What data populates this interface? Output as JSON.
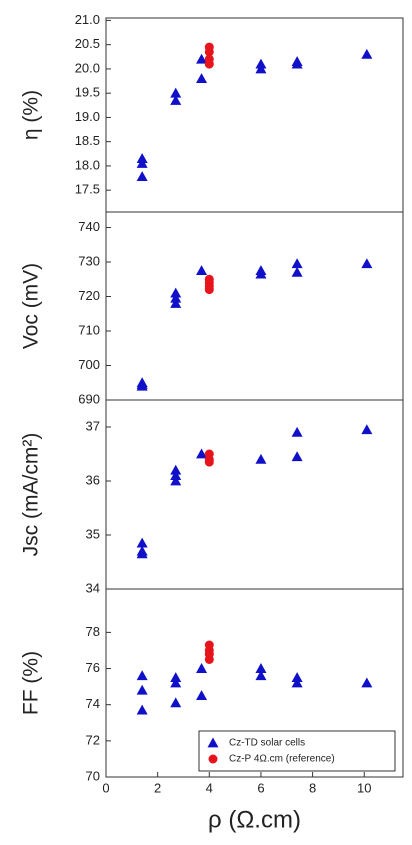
{
  "chart_data": [
    {
      "type": "scatter",
      "ylabel": "η (%)",
      "xlim": [
        0,
        11.5
      ],
      "ylim": [
        17.05,
        21.05
      ],
      "yticks": [
        {
          "value": 21,
          "label": "21.0"
        },
        20.5,
        {
          "value": 20,
          "label": "20.0"
        },
        19.5,
        {
          "value": 19,
          "label": "19.0"
        },
        18.5,
        {
          "value": 18,
          "label": "18.0"
        },
        17.5
      ],
      "series": [
        {
          "color": "#1010c8",
          "marker": "triangle",
          "x": [
            1.4,
            1.4,
            1.4,
            2.7,
            2.7,
            3.7,
            3.7,
            6.0,
            6.0,
            7.4,
            7.4,
            10.1
          ],
          "values": [
            18.15,
            18.05,
            17.78,
            19.5,
            19.35,
            20.2,
            19.8,
            20.1,
            20.0,
            20.15,
            20.1,
            20.3
          ]
        },
        {
          "color": "#e8141c",
          "marker": "circle",
          "x": [
            4.0,
            4.0,
            4.0,
            4.0
          ],
          "values": [
            20.45,
            20.35,
            20.2,
            20.1
          ]
        }
      ]
    },
    {
      "type": "scatter",
      "ylabel": "Voc (mV)",
      "xlim": [
        0,
        11.5
      ],
      "ylim": [
        690,
        744.5
      ],
      "yticks": [
        690,
        700,
        710,
        720,
        730,
        740
      ],
      "series": [
        {
          "color": "#1010c8",
          "marker": "triangle",
          "x": [
            1.4,
            1.4,
            1.4,
            2.7,
            2.7,
            2.7,
            3.7,
            6.0,
            6.0,
            7.4,
            7.4,
            10.1
          ],
          "values": [
            695,
            694.5,
            694,
            721,
            719.5,
            718,
            727.5,
            727.5,
            726.5,
            729.5,
            727,
            729.5
          ]
        },
        {
          "color": "#e8141c",
          "marker": "circle",
          "x": [
            4.0,
            4.0,
            4.0,
            4.0
          ],
          "values": [
            725,
            724,
            723,
            722
          ]
        }
      ]
    },
    {
      "type": "scatter",
      "ylabel": "Jsc (mA/cm²)",
      "xlim": [
        0,
        11.5
      ],
      "ylim": [
        34,
        37.5
      ],
      "yticks": [
        34,
        35,
        36,
        37
      ],
      "series": [
        {
          "color": "#1010c8",
          "marker": "triangle",
          "x": [
            1.4,
            1.4,
            1.4,
            2.7,
            2.7,
            2.7,
            3.7,
            6.0,
            7.4,
            7.4,
            10.1
          ],
          "values": [
            34.85,
            34.7,
            34.65,
            36.2,
            36.1,
            36.0,
            36.5,
            36.4,
            36.9,
            36.45,
            36.95
          ]
        },
        {
          "color": "#e8141c",
          "marker": "circle",
          "x": [
            4.0,
            4.0,
            4.0
          ],
          "values": [
            36.5,
            36.4,
            36.35
          ]
        }
      ]
    },
    {
      "type": "scatter",
      "ylabel": "FF (%)",
      "xlabel": "ρ (Ω.cm)",
      "xlim": [
        0,
        11.5
      ],
      "ylim": [
        70,
        80.4
      ],
      "xticks": [
        0,
        2,
        4,
        6,
        8,
        10
      ],
      "yticks": [
        70,
        72,
        74,
        76,
        78
      ],
      "legend": "lower right",
      "series": [
        {
          "name": "Cz-TD solar cells",
          "color": "#1010c8",
          "marker": "triangle",
          "x": [
            1.4,
            1.4,
            1.4,
            2.7,
            2.7,
            2.7,
            3.7,
            3.7,
            6.0,
            6.0,
            7.4,
            7.4,
            10.1
          ],
          "values": [
            75.6,
            74.8,
            73.7,
            75.5,
            75.2,
            74.1,
            76.0,
            74.5,
            76.0,
            75.6,
            75.5,
            75.2,
            75.2
          ]
        },
        {
          "name": "Cz-P 4Ω.cm (reference)",
          "color": "#e8141c",
          "marker": "circle",
          "x": [
            4.0,
            4.0,
            4.0,
            4.0
          ],
          "values": [
            77.3,
            77.0,
            76.8,
            76.5
          ]
        }
      ]
    }
  ]
}
